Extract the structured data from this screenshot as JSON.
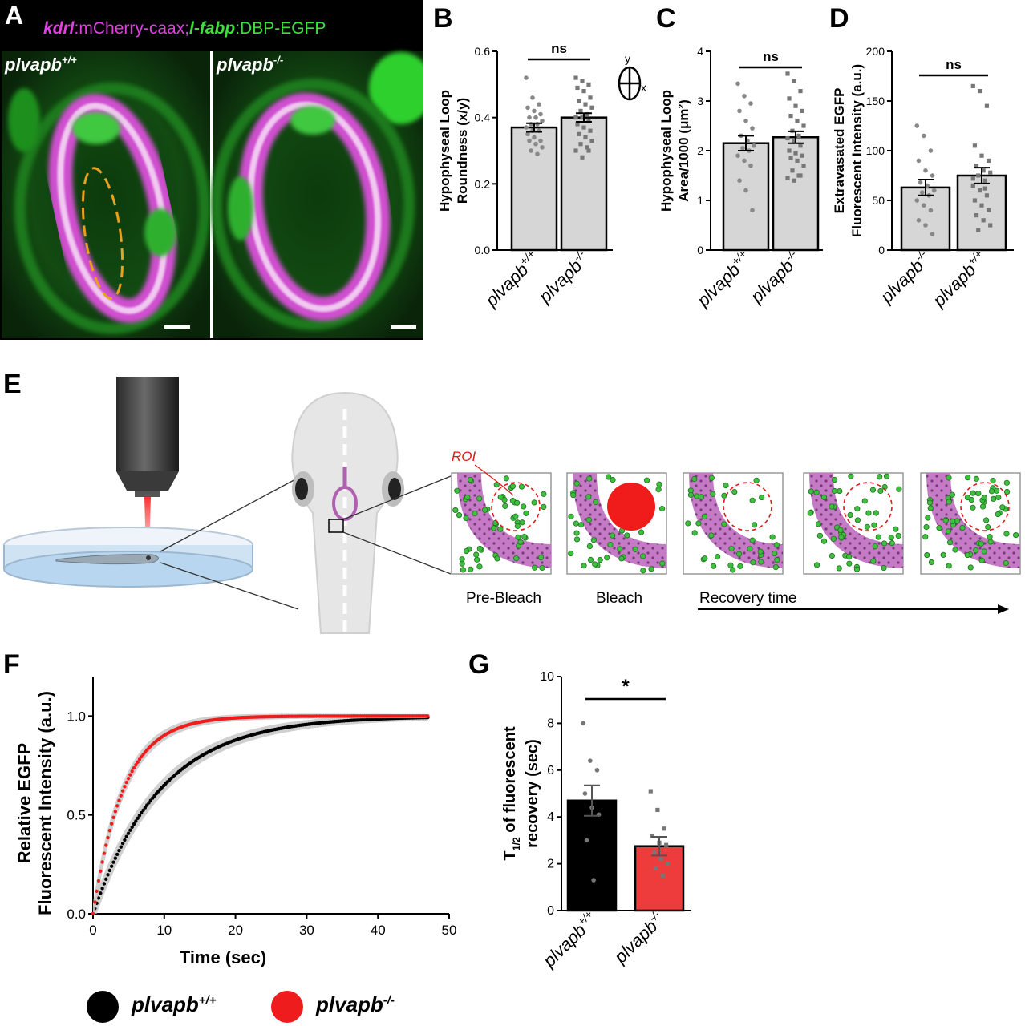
{
  "panels": {
    "A": "A",
    "B": "B",
    "C": "C",
    "D": "D",
    "E": "E",
    "F": "F",
    "G": "G"
  },
  "panelA": {
    "title_kdrl": "kdrl",
    "title_mid": ":mCherry-caax;",
    "title_lfabp": "l-fabp",
    "title_end": ":DBP-EGFP",
    "left_geno": "plvapb",
    "left_sup": "+/+",
    "right_geno": "plvapb",
    "right_sup": "-/-"
  },
  "orientation": {
    "y": "y",
    "x": "x"
  },
  "panelE": {
    "roi": "ROI",
    "pre_bleach": "Pre-Bleach",
    "bleach": "Bleach",
    "recovery": "Recovery time"
  },
  "legendF": {
    "wt": "plvapb",
    "wt_sup": "+/+",
    "mut": "plvapb",
    "mut_sup": "-/-",
    "wt_color": "#000000",
    "mut_color": "#ee1c1c"
  },
  "chart_data": [
    {
      "id": "B",
      "type": "bar",
      "ylabel_1": "Hypophyseal Loop",
      "ylabel_2": "Roundness (x/y)",
      "ylim": [
        0,
        0.6
      ],
      "yticks": [
        "0.0",
        "0.2",
        "0.4",
        "0.6"
      ],
      "ytick_values": [
        0,
        0.2,
        0.4,
        0.6
      ],
      "categories": [
        {
          "geno": "plvapb",
          "sup": "+/+"
        },
        {
          "geno": "plvapb",
          "sup": "-/-"
        }
      ],
      "values": [
        0.37,
        0.4
      ],
      "sem": [
        0.013,
        0.013
      ],
      "significance": "ns",
      "points": [
        [
          0.52,
          0.46,
          0.44,
          0.43,
          0.42,
          0.41,
          0.4,
          0.4,
          0.39,
          0.38,
          0.38,
          0.37,
          0.36,
          0.36,
          0.35,
          0.34,
          0.33,
          0.33,
          0.32,
          0.31,
          0.3,
          0.29
        ],
        [
          0.52,
          0.51,
          0.5,
          0.49,
          0.48,
          0.46,
          0.45,
          0.44,
          0.43,
          0.42,
          0.41,
          0.4,
          0.4,
          0.39,
          0.38,
          0.37,
          0.36,
          0.35,
          0.34,
          0.33,
          0.32,
          0.31,
          0.3,
          0.28,
          0.3
        ]
      ]
    },
    {
      "id": "C",
      "type": "bar",
      "ylabel_1": "Hypophyseal Loop",
      "ylabel_2": "Area/1000 (μm²)",
      "ylim": [
        0,
        4
      ],
      "yticks": [
        "0",
        "1",
        "2",
        "3",
        "4"
      ],
      "ytick_values": [
        0,
        1,
        2,
        3,
        4
      ],
      "categories": [
        {
          "geno": "plvapb",
          "sup": "+/+"
        },
        {
          "geno": "plvapb",
          "sup": "-/-"
        }
      ],
      "values": [
        2.15,
        2.27
      ],
      "sem": [
        0.15,
        0.12
      ],
      "significance": "ns",
      "points": [
        [
          3.35,
          3.1,
          2.95,
          2.8,
          2.6,
          2.45,
          2.3,
          2.2,
          2.1,
          2.05,
          2.0,
          1.9,
          1.8,
          1.7,
          1.4,
          1.2,
          0.8
        ],
        [
          3.55,
          3.4,
          3.2,
          3.05,
          2.9,
          2.8,
          2.7,
          2.6,
          2.5,
          2.4,
          2.3,
          2.25,
          2.2,
          2.1,
          2.0,
          1.95,
          1.9,
          1.85,
          1.8,
          1.7,
          1.6,
          1.5,
          1.45,
          1.4,
          1.5
        ]
      ]
    },
    {
      "id": "D",
      "type": "bar",
      "ylabel_1": "Extravasated EGFP",
      "ylabel_2": "Fluorescent Intensity (a.u.)",
      "ylim": [
        0,
        200
      ],
      "yticks": [
        "0",
        "50",
        "100",
        "150",
        "200"
      ],
      "ytick_values": [
        0,
        50,
        100,
        150,
        200
      ],
      "categories": [
        {
          "geno": "plvapb",
          "sup": "-/-"
        },
        {
          "geno": "plvapb",
          "sup": "+/+"
        }
      ],
      "values": [
        63,
        75
      ],
      "sem": [
        8,
        8
      ],
      "significance": "ns",
      "points": [
        [
          125,
          115,
          100,
          90,
          80,
          75,
          68,
          65,
          60,
          58,
          55,
          50,
          45,
          40,
          30,
          25,
          16
        ],
        [
          165,
          160,
          145,
          105,
          95,
          90,
          85,
          80,
          78,
          75,
          70,
          65,
          60,
          55,
          50,
          45,
          40,
          35,
          30,
          25,
          20,
          62,
          72
        ]
      ]
    },
    {
      "id": "F",
      "type": "line",
      "xlabel": "Time (sec)",
      "ylabel_1": "Relative EGFP",
      "ylabel_2": "Fluorescent Intensity (a.u.)",
      "xlim": [
        0,
        50
      ],
      "ylim": [
        0,
        1.2
      ],
      "xticks": [
        "0",
        "10",
        "20",
        "30",
        "40",
        "50"
      ],
      "xtick_values": [
        0,
        10,
        20,
        30,
        40,
        50
      ],
      "yticks": [
        "0.0",
        "0.5",
        "1.0"
      ],
      "ytick_values": [
        0,
        0.5,
        1.0
      ],
      "series": [
        {
          "name": "plvapb+/+",
          "color": "#000000",
          "tau": 9.5,
          "t_max": 47
        },
        {
          "name": "plvapb-/-",
          "color": "#ee1c1c",
          "tau": 4.3,
          "t_max": 47
        }
      ]
    },
    {
      "id": "G",
      "type": "bar",
      "ylabel_1": "T",
      "ylabel_sub": "1/2",
      "ylabel_rest": " of fluorescent",
      "ylabel_2": "recovery (sec)",
      "ylim": [
        0,
        10
      ],
      "yticks": [
        "0",
        "2",
        "4",
        "6",
        "8",
        "10"
      ],
      "ytick_values": [
        0,
        2,
        4,
        6,
        8,
        10
      ],
      "categories": [
        {
          "geno": "plvapb",
          "sup": "+/+"
        },
        {
          "geno": "plvapb",
          "sup": "-/-"
        }
      ],
      "values": [
        4.7,
        2.75
      ],
      "sem": [
        0.65,
        0.4
      ],
      "colors": [
        "#000000",
        "#ee3b3b"
      ],
      "significance": "*",
      "points": [
        [
          8.0,
          6.4,
          6.0,
          5.0,
          4.4,
          4.1,
          3.0,
          1.3
        ],
        [
          5.1,
          4.3,
          3.5,
          3.2,
          2.9,
          2.8,
          2.5,
          2.2,
          2.0,
          1.8,
          1.5
        ]
      ]
    }
  ]
}
